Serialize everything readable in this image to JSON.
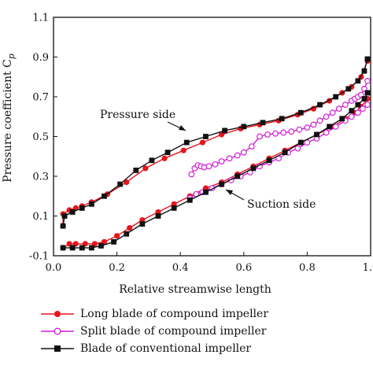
{
  "chart_data": {
    "type": "line",
    "title": "",
    "xlabel": "Relative streamwise length",
    "ylabel": "Pressure coefficient C_p",
    "xlim": [
      0.0,
      1.0
    ],
    "ylim": [
      -0.1,
      1.1
    ],
    "xticks": [
      "0.0",
      "0.2",
      "0.4",
      "0.6",
      "0.8",
      "1.0"
    ],
    "yticks": [
      "-0.1",
      "0.1",
      "0.3",
      "0.5",
      "0.7",
      "0.9",
      "1.1"
    ],
    "grid": false,
    "annotations": [
      {
        "text": "Pressure side",
        "arrow_to": [
          0.44,
          0.51
        ]
      },
      {
        "text": "Suction side",
        "arrow_to": [
          0.56,
          0.23
        ]
      }
    ],
    "series": [
      {
        "name": "Long blade of compound impeller",
        "color": "#e8141c",
        "marker": "circle-filled",
        "segments": [
          {
            "part": "pressure",
            "x": [
              0.03,
              0.03,
              0.05,
              0.07,
              0.09,
              0.12,
              0.17,
              0.23,
              0.29,
              0.35,
              0.41,
              0.47,
              0.53,
              0.59,
              0.65,
              0.71,
              0.77,
              0.82,
              0.87,
              0.91,
              0.94,
              0.97,
              0.99
            ],
            "y": [
              0.05,
              0.11,
              0.13,
              0.14,
              0.15,
              0.17,
              0.21,
              0.27,
              0.34,
              0.39,
              0.43,
              0.47,
              0.51,
              0.54,
              0.56,
              0.58,
              0.61,
              0.64,
              0.68,
              0.72,
              0.75,
              0.8,
              0.88
            ]
          },
          {
            "part": "suction",
            "x": [
              0.03,
              0.05,
              0.07,
              0.1,
              0.13,
              0.16,
              0.2,
              0.24,
              0.28,
              0.33,
              0.38,
              0.43,
              0.48,
              0.53,
              0.58,
              0.63,
              0.68,
              0.73,
              0.78,
              0.83,
              0.88,
              0.92,
              0.95,
              0.97,
              0.99
            ],
            "y": [
              -0.06,
              -0.04,
              -0.04,
              -0.04,
              -0.04,
              -0.03,
              0.0,
              0.04,
              0.08,
              0.12,
              0.16,
              0.2,
              0.24,
              0.27,
              0.31,
              0.35,
              0.39,
              0.43,
              0.47,
              0.51,
              0.55,
              0.59,
              0.62,
              0.65,
              0.69
            ]
          }
        ]
      },
      {
        "name": "Split blade of compound impeller",
        "color": "#d21fd6",
        "marker": "circle-open",
        "segments": [
          {
            "part": "pressure",
            "x": [
              0.435,
              0.445,
              0.455,
              0.465,
              0.475,
              0.49,
              0.51,
              0.53,
              0.555,
              0.58,
              0.6,
              0.625,
              0.65,
              0.675,
              0.7,
              0.725,
              0.75,
              0.775,
              0.8,
              0.82,
              0.84,
              0.86,
              0.88,
              0.9,
              0.92,
              0.94,
              0.95,
              0.96,
              0.97,
              0.98,
              0.99
            ],
            "y": [
              0.31,
              0.34,
              0.355,
              0.35,
              0.345,
              0.35,
              0.36,
              0.375,
              0.39,
              0.405,
              0.42,
              0.45,
              0.5,
              0.51,
              0.515,
              0.52,
              0.525,
              0.535,
              0.545,
              0.56,
              0.58,
              0.6,
              0.62,
              0.64,
              0.66,
              0.68,
              0.69,
              0.7,
              0.71,
              0.74,
              0.78
            ]
          },
          {
            "part": "suction",
            "x": [
              0.43,
              0.45,
              0.47,
              0.5,
              0.53,
              0.56,
              0.59,
              0.62,
              0.65,
              0.68,
              0.71,
              0.74,
              0.77,
              0.8,
              0.83,
              0.86,
              0.89,
              0.92,
              0.94,
              0.96,
              0.975,
              0.99
            ],
            "y": [
              0.19,
              0.21,
              0.22,
              0.24,
              0.26,
              0.28,
              0.3,
              0.32,
              0.35,
              0.37,
              0.39,
              0.42,
              0.44,
              0.47,
              0.49,
              0.52,
              0.55,
              0.58,
              0.6,
              0.62,
              0.64,
              0.66
            ]
          }
        ]
      },
      {
        "name": "Blade of conventional impeller",
        "color": "#111111",
        "marker": "square-filled",
        "segments": [
          {
            "part": "pressure",
            "x": [
              0.03,
              0.035,
              0.06,
              0.09,
              0.12,
              0.16,
              0.21,
              0.26,
              0.31,
              0.36,
              0.42,
              0.48,
              0.54,
              0.6,
              0.66,
              0.72,
              0.78,
              0.84,
              0.89,
              0.93,
              0.96,
              0.98,
              0.99
            ],
            "y": [
              0.05,
              0.1,
              0.12,
              0.14,
              0.16,
              0.2,
              0.26,
              0.33,
              0.38,
              0.42,
              0.47,
              0.5,
              0.53,
              0.55,
              0.57,
              0.59,
              0.62,
              0.66,
              0.7,
              0.74,
              0.78,
              0.83,
              0.89
            ]
          },
          {
            "part": "suction",
            "x": [
              0.03,
              0.06,
              0.09,
              0.12,
              0.15,
              0.19,
              0.23,
              0.28,
              0.33,
              0.38,
              0.43,
              0.48,
              0.53,
              0.58,
              0.63,
              0.68,
              0.73,
              0.78,
              0.83,
              0.87,
              0.91,
              0.94,
              0.96,
              0.98,
              0.99
            ],
            "y": [
              -0.06,
              -0.06,
              -0.06,
              -0.06,
              -0.05,
              -0.03,
              0.01,
              0.06,
              0.1,
              0.14,
              0.18,
              0.22,
              0.26,
              0.3,
              0.34,
              0.38,
              0.42,
              0.47,
              0.51,
              0.55,
              0.59,
              0.63,
              0.66,
              0.69,
              0.72
            ]
          }
        ]
      }
    ]
  }
}
